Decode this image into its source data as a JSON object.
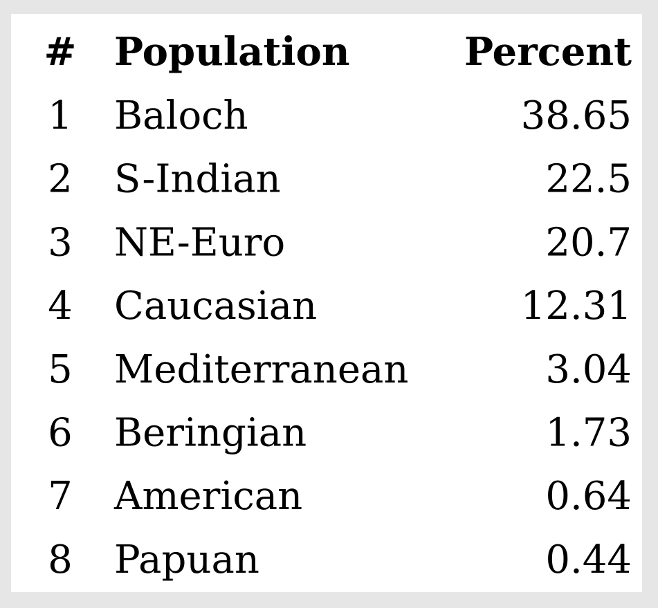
{
  "table": {
    "header": [
      "#",
      "Population",
      "Percent"
    ],
    "rows": [
      [
        1,
        "Baloch",
        38.65
      ],
      [
        2,
        "S-Indian",
        22.5
      ],
      [
        3,
        "NE-Euro",
        20.7
      ],
      [
        4,
        "Caucasian",
        12.31
      ],
      [
        5,
        "Mediterranean",
        3.04
      ],
      [
        6,
        "Beringian",
        1.73
      ],
      [
        7,
        "American",
        0.64
      ],
      [
        8,
        "Papuan",
        0.44
      ]
    ]
  }
}
